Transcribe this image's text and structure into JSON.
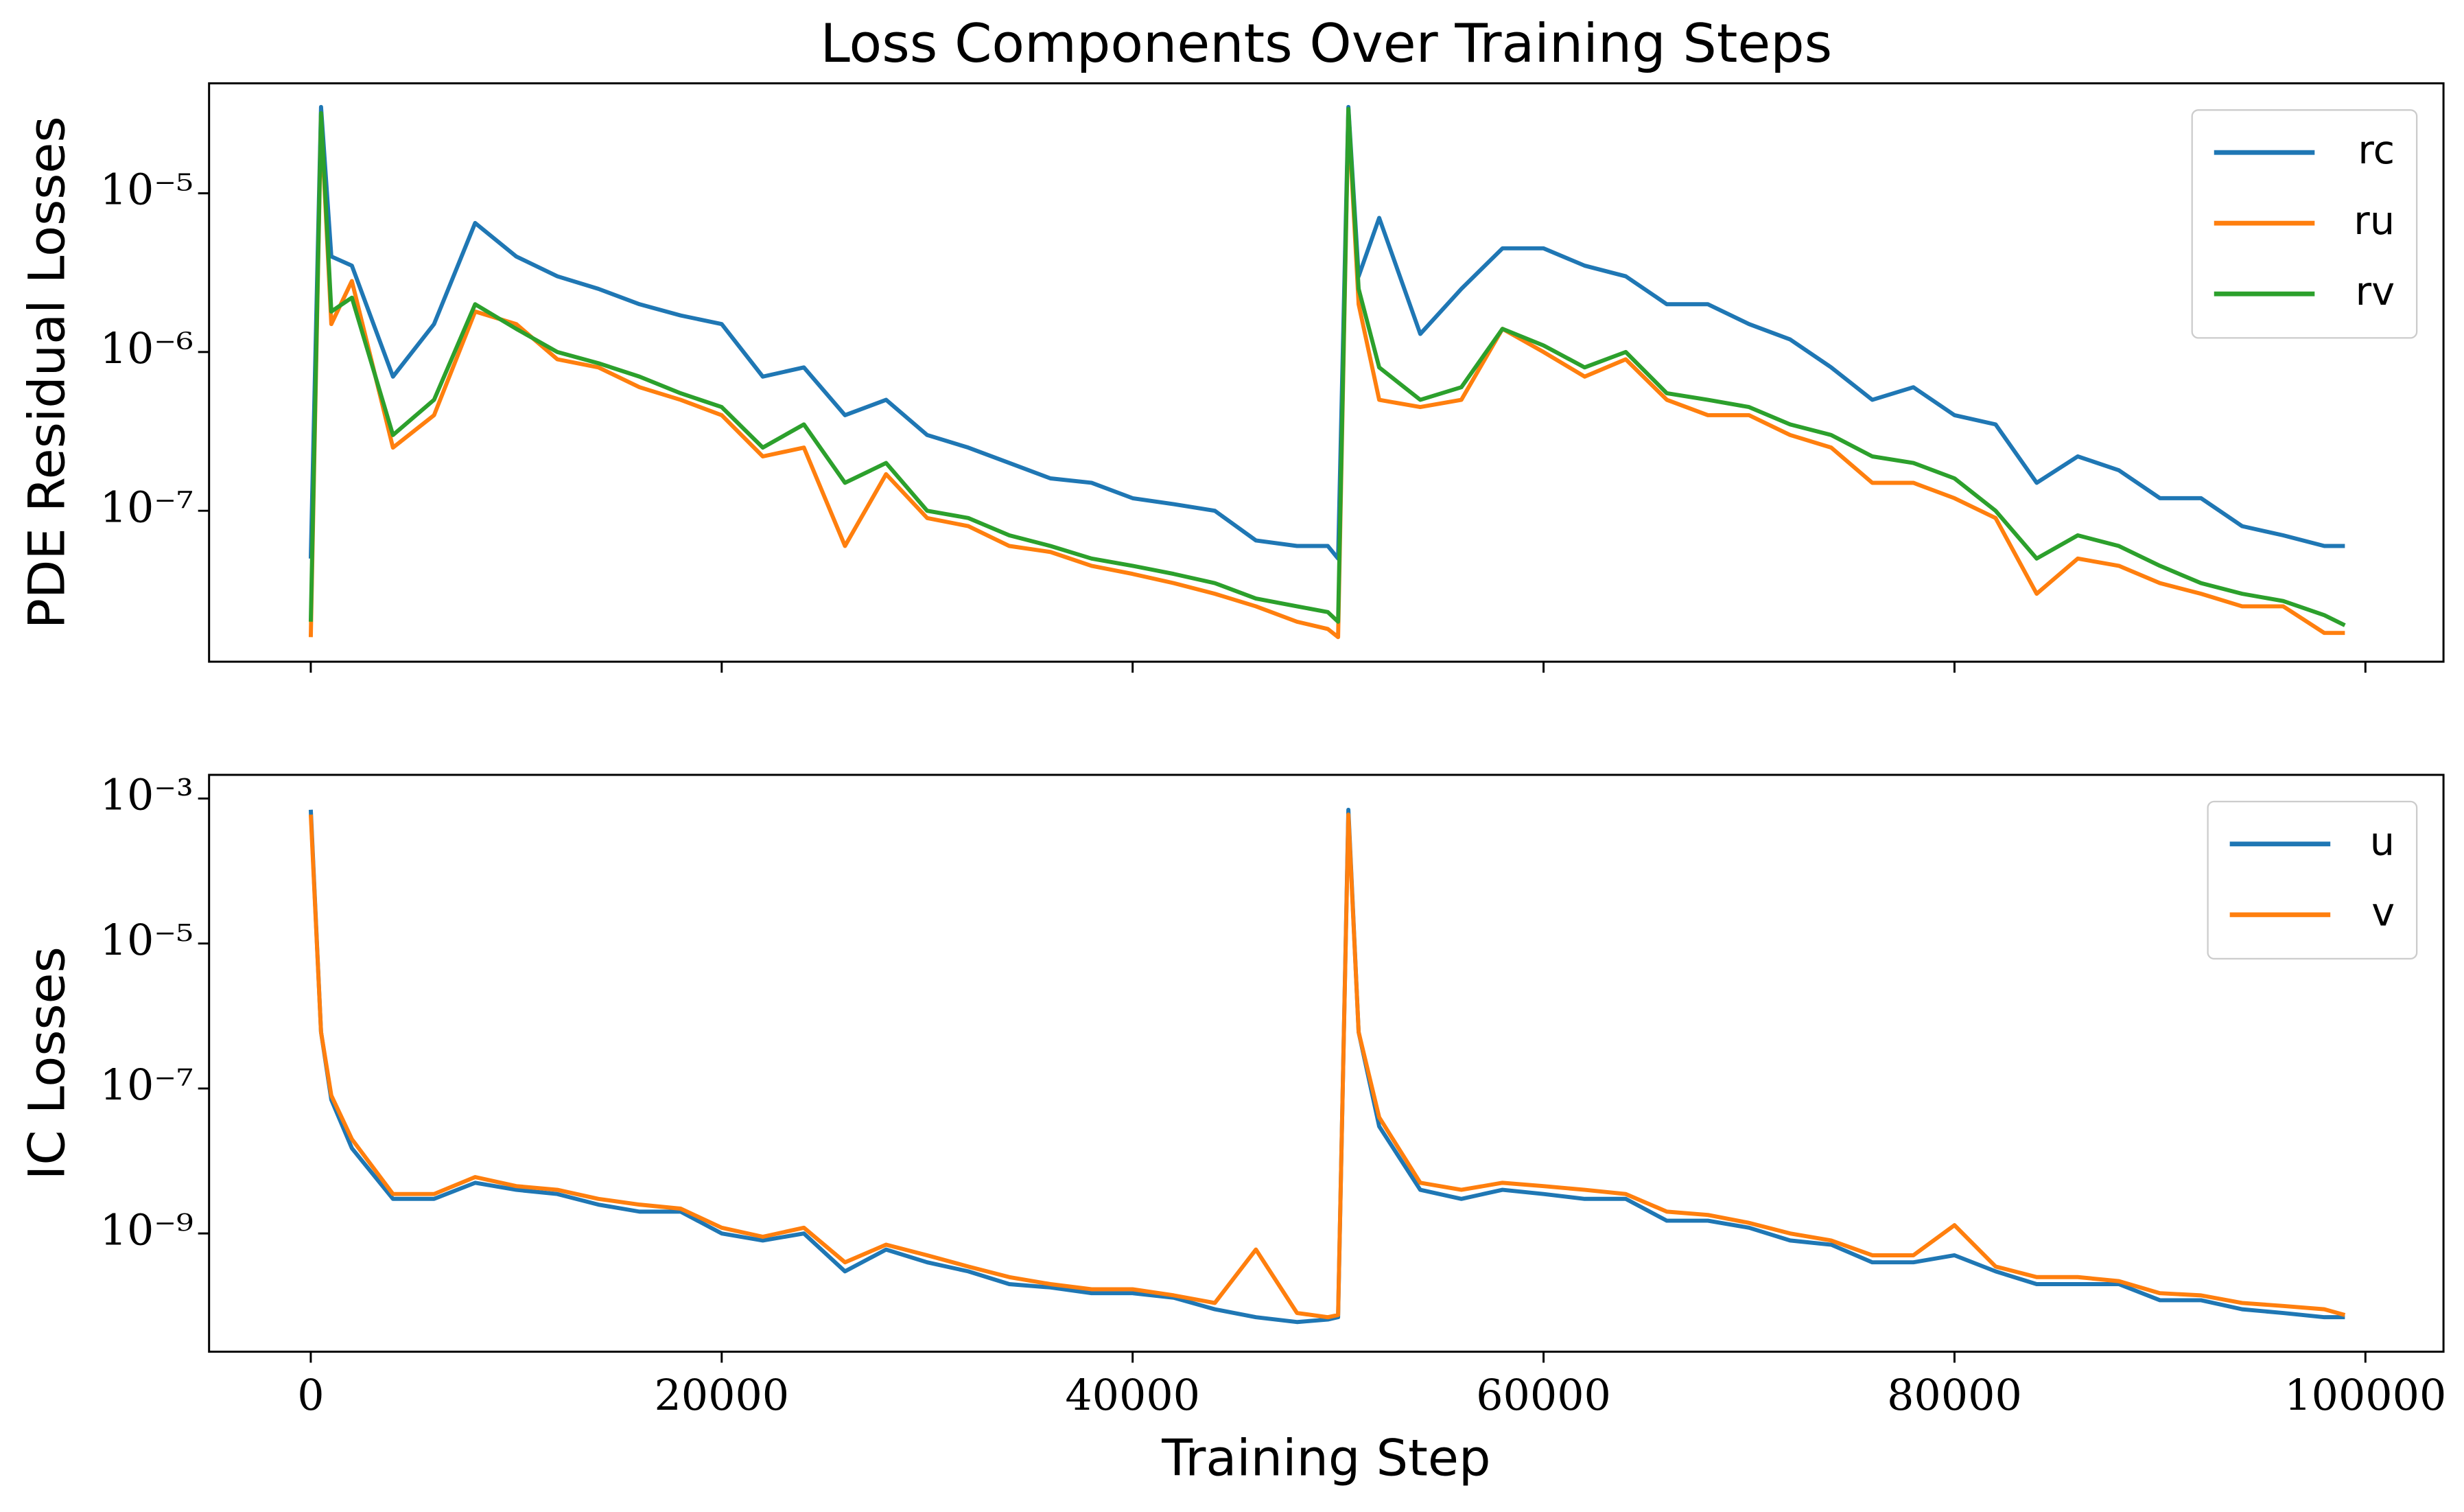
{
  "chart_data": [
    {
      "type": "line",
      "title": "Loss Components Over Training Steps",
      "ylabel": "PDE Residual Losses",
      "yscale": "log",
      "legend": "upper right",
      "sharex": true,
      "xlim": [
        -4950,
        103800
      ],
      "ylim": [
        1.12e-08,
        4.93e-05
      ],
      "yticks": [
        {
          "value": 1e-07,
          "label": "10⁻⁷"
        },
        {
          "value": 1e-06,
          "label": "10⁻⁶"
        },
        {
          "value": 1e-05,
          "label": "10⁻⁵"
        }
      ],
      "x": [
        0,
        500,
        1000,
        2000,
        4000,
        6000,
        8000,
        10000,
        12000,
        14000,
        16000,
        18000,
        20000,
        22000,
        24000,
        26000,
        28000,
        30000,
        32000,
        34000,
        36000,
        38000,
        40000,
        42000,
        44000,
        46000,
        48000,
        49500,
        50000,
        50500,
        51000,
        52000,
        54000,
        56000,
        58000,
        60000,
        62000,
        64000,
        66000,
        68000,
        70000,
        72000,
        74000,
        76000,
        78000,
        80000,
        82000,
        84000,
        86000,
        88000,
        90000,
        92000,
        94000,
        96000,
        98000,
        99000
      ],
      "series": [
        {
          "name": "rc",
          "color": "#1f77b4",
          "values": [
            5e-08,
            3.5e-05,
            4e-06,
            3.5e-06,
            7e-07,
            1.5e-06,
            6.5e-06,
            4e-06,
            3e-06,
            2.5e-06,
            2e-06,
            1.7e-06,
            1.5e-06,
            7e-07,
            8e-07,
            4e-07,
            5e-07,
            3e-07,
            2.5e-07,
            2e-07,
            1.6e-07,
            1.5e-07,
            1.2e-07,
            1.1e-07,
            1e-07,
            6.5e-08,
            6e-08,
            6e-08,
            5e-08,
            3.5e-05,
            3e-06,
            7e-06,
            1.3e-06,
            2.5e-06,
            4.5e-06,
            4.5e-06,
            3.5e-06,
            3e-06,
            2e-06,
            2e-06,
            1.5e-06,
            1.2e-06,
            8e-07,
            5e-07,
            6e-07,
            4e-07,
            3.5e-07,
            1.5e-07,
            2.2e-07,
            1.8e-07,
            1.2e-07,
            1.2e-07,
            8e-08,
            7e-08,
            6e-08,
            6e-08
          ]
        },
        {
          "name": "ru",
          "color": "#ff7f0e",
          "values": [
            1.6e-08,
            3e-05,
            1.5e-06,
            2.8e-06,
            2.5e-07,
            4e-07,
            1.8e-06,
            1.5e-06,
            9e-07,
            8e-07,
            6e-07,
            5e-07,
            4e-07,
            2.2e-07,
            2.5e-07,
            6e-08,
            1.7e-07,
            9e-08,
            8e-08,
            6e-08,
            5.5e-08,
            4.5e-08,
            4e-08,
            3.5e-08,
            3e-08,
            2.5e-08,
            2e-08,
            1.8e-08,
            1.6e-08,
            3.2e-05,
            2e-06,
            5e-07,
            4.5e-07,
            5e-07,
            1.4e-06,
            1e-06,
            7e-07,
            9e-07,
            5e-07,
            4e-07,
            4e-07,
            3e-07,
            2.5e-07,
            1.5e-07,
            1.5e-07,
            1.2e-07,
            9e-08,
            3e-08,
            5e-08,
            4.5e-08,
            3.5e-08,
            3e-08,
            2.5e-08,
            2.5e-08,
            1.7e-08,
            1.7e-08
          ]
        },
        {
          "name": "rv",
          "color": "#2ca02c",
          "values": [
            2e-08,
            3.2e-05,
            1.8e-06,
            2.2e-06,
            3e-07,
            5e-07,
            2e-06,
            1.4e-06,
            1e-06,
            8.5e-07,
            7e-07,
            5.5e-07,
            4.5e-07,
            2.5e-07,
            3.5e-07,
            1.5e-07,
            2e-07,
            1e-07,
            9e-08,
            7e-08,
            6e-08,
            5e-08,
            4.5e-08,
            4e-08,
            3.5e-08,
            2.8e-08,
            2.5e-08,
            2.3e-08,
            2e-08,
            3.4e-05,
            2.5e-06,
            8e-07,
            5e-07,
            6e-07,
            1.4e-06,
            1.1e-06,
            8e-07,
            1e-06,
            5.5e-07,
            5e-07,
            4.5e-07,
            3.5e-07,
            3e-07,
            2.2e-07,
            2e-07,
            1.6e-07,
            1e-07,
            5e-08,
            7e-08,
            6e-08,
            4.5e-08,
            3.5e-08,
            3e-08,
            2.7e-08,
            2.2e-08,
            1.9e-08
          ]
        }
      ]
    },
    {
      "type": "line",
      "ylabel": "IC Losses",
      "xlabel": "Training Step",
      "yscale": "log",
      "legend": "upper right",
      "xlim": [
        -4950,
        103800
      ],
      "ylim": [
        2.34e-11,
        0.00212
      ],
      "xticks": [
        0,
        20000,
        40000,
        60000,
        80000,
        100000
      ],
      "yticks": [
        {
          "value": 1e-09,
          "label": "10⁻⁹"
        },
        {
          "value": 1e-07,
          "label": "10⁻⁷"
        },
        {
          "value": 1e-05,
          "label": "10⁻⁵"
        },
        {
          "value": 0.001,
          "label": "10⁻³"
        }
      ],
      "x": [
        0,
        500,
        1000,
        2000,
        4000,
        6000,
        8000,
        10000,
        12000,
        14000,
        16000,
        18000,
        20000,
        22000,
        24000,
        26000,
        28000,
        30000,
        32000,
        34000,
        36000,
        38000,
        40000,
        42000,
        44000,
        46000,
        48000,
        49500,
        50000,
        50500,
        51000,
        52000,
        54000,
        56000,
        58000,
        60000,
        62000,
        64000,
        66000,
        68000,
        70000,
        72000,
        74000,
        76000,
        78000,
        80000,
        82000,
        84000,
        86000,
        88000,
        90000,
        92000,
        94000,
        96000,
        98000,
        99000
      ],
      "series": [
        {
          "name": "u",
          "color": "#1f77b4",
          "values": [
            0.0007,
            6e-07,
            7e-08,
            1.5e-08,
            3e-09,
            3e-09,
            5e-09,
            4e-09,
            3.5e-09,
            2.5e-09,
            2e-09,
            2e-09,
            1e-09,
            8e-10,
            1e-09,
            3e-10,
            6e-10,
            4e-10,
            3e-10,
            2e-10,
            1.8e-10,
            1.5e-10,
            1.5e-10,
            1.3e-10,
            9e-11,
            7e-11,
            6e-11,
            6.5e-11,
            7e-11,
            0.0007,
            6e-07,
            3e-08,
            4e-09,
            3e-09,
            4e-09,
            3.5e-09,
            3e-09,
            3e-09,
            1.5e-09,
            1.5e-09,
            1.2e-09,
            8e-10,
            7e-10,
            4e-10,
            4e-10,
            5e-10,
            3e-10,
            2e-10,
            2e-10,
            2e-10,
            1.2e-10,
            1.2e-10,
            9e-11,
            8e-11,
            7e-11,
            7e-11
          ]
        },
        {
          "name": "v",
          "color": "#ff7f0e",
          "values": [
            0.0006,
            6e-07,
            8e-08,
            2e-08,
            3.5e-09,
            3.5e-09,
            6e-09,
            4.5e-09,
            4e-09,
            3e-09,
            2.5e-09,
            2.2e-09,
            1.2e-09,
            9e-10,
            1.2e-09,
            4e-10,
            7e-10,
            5e-10,
            3.5e-10,
            2.5e-10,
            2e-10,
            1.7e-10,
            1.7e-10,
            1.4e-10,
            1.1e-10,
            6e-10,
            8e-11,
            7e-11,
            7.5e-11,
            0.0006,
            6e-07,
            4e-08,
            5e-09,
            4e-09,
            5e-09,
            4.5e-09,
            4e-09,
            3.5e-09,
            2e-09,
            1.8e-09,
            1.4e-09,
            1e-09,
            8e-10,
            5e-10,
            5e-10,
            1.3e-09,
            3.5e-10,
            2.5e-10,
            2.5e-10,
            2.2e-10,
            1.5e-10,
            1.4e-10,
            1.1e-10,
            1e-10,
            9e-11,
            7.5e-11
          ]
        }
      ]
    }
  ]
}
